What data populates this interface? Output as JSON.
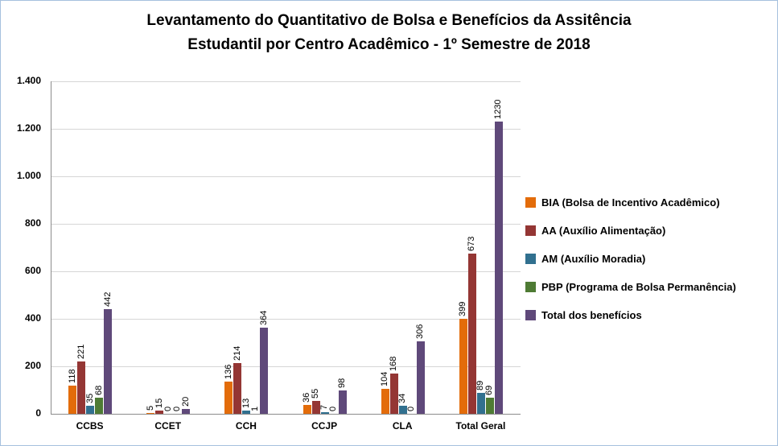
{
  "title": {
    "line1": "Levantamento do Quantitativo de Bolsa e Benefícios da Assitência",
    "line2": "Estudantil  por Centro Acadêmico - 1º Semestre de 2018"
  },
  "chart_data": {
    "type": "bar",
    "title": "Levantamento do Quantitativo de Bolsa e Benefícios da Assitência Estudantil por Centro Acadêmico - 1º Semestre de 2018",
    "categories": [
      "CCBS",
      "CCET",
      "CCH",
      "CCJP",
      "CLA",
      "Total Geral"
    ],
    "series": [
      {
        "name": "BIA (Bolsa de Incentivo Acadêmico)",
        "color": "#E36C0A",
        "values": [
          118,
          5,
          136,
          36,
          104,
          399
        ]
      },
      {
        "name": "AA (Auxílio Alimentação)",
        "color": "#943634",
        "values": [
          221,
          15,
          214,
          55,
          168,
          673
        ]
      },
      {
        "name": "AM (Auxílio Moradia)",
        "color": "#31708F",
        "values": [
          35,
          0,
          13,
          7,
          34,
          89
        ]
      },
      {
        "name": "PBP (Programa de Bolsa Permanência)",
        "color": "#4E7B34",
        "values": [
          68,
          0,
          1,
          0,
          0,
          69
        ]
      },
      {
        "name": "Total dos benefícios",
        "color": "#5F497A",
        "values": [
          442,
          20,
          364,
          98,
          306,
          1230
        ]
      }
    ],
    "xlabel": "",
    "ylabel": "",
    "ylim": [
      0,
      1400
    ],
    "ytick_step": 200,
    "ytick_labels": [
      "0",
      "200",
      "400",
      "600",
      "800",
      "1.000",
      "1.200",
      "1.400"
    ],
    "grid": true,
    "legend_position": "right",
    "data_labels": "rotated-vertical"
  },
  "colors": {
    "frame_border": "#A6C1DE",
    "gridline": "#D6D6D6",
    "axis": "#8C8C8C",
    "text": "#000000"
  }
}
